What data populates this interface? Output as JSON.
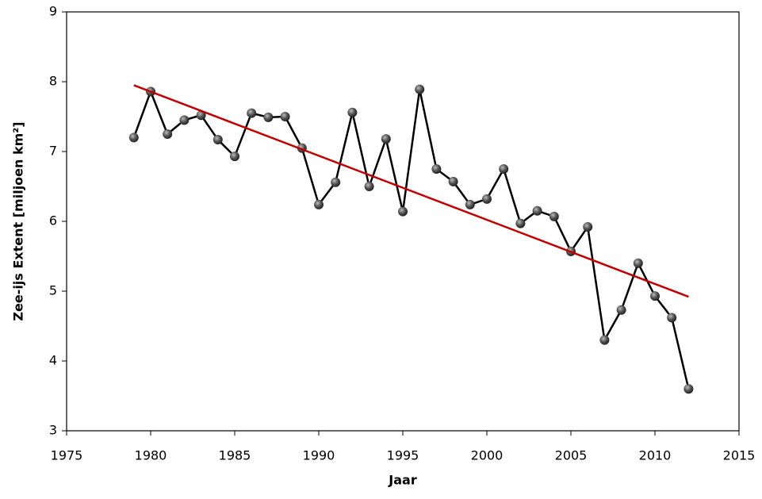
{
  "chart_data": {
    "type": "line",
    "xlabel": "Jaar",
    "ylabel": "Zee-ijs Extent [miljoen km²]",
    "x": [
      1979,
      1980,
      1981,
      1982,
      1983,
      1984,
      1985,
      1986,
      1987,
      1988,
      1989,
      1990,
      1991,
      1992,
      1993,
      1994,
      1995,
      1996,
      1997,
      1998,
      1999,
      2000,
      2001,
      2002,
      2003,
      2004,
      2005,
      2006,
      2007,
      2008,
      2009,
      2010,
      2011,
      2012
    ],
    "series": [
      {
        "color": "#000000",
        "marker": true,
        "values": [
          7.2,
          7.86,
          7.25,
          7.45,
          7.52,
          7.17,
          6.93,
          7.55,
          7.49,
          7.5,
          7.05,
          6.24,
          6.56,
          7.56,
          6.5,
          7.18,
          6.14,
          7.89,
          6.75,
          6.57,
          6.24,
          6.32,
          6.75,
          5.97,
          6.15,
          6.07,
          5.57,
          5.92,
          4.3,
          4.73,
          5.4,
          4.93,
          4.62,
          3.6
        ]
      },
      {
        "color": "#c00000",
        "marker": false,
        "x": [
          1979,
          2012
        ],
        "values": [
          7.95,
          4.92
        ]
      }
    ],
    "xlim": [
      1975,
      2015
    ],
    "xticks": [
      1975,
      1980,
      1985,
      1990,
      1995,
      2000,
      2005,
      2010,
      2015
    ],
    "ylim": [
      3,
      9
    ],
    "yticks": [
      3,
      4,
      5,
      6,
      7,
      8,
      9
    ],
    "grid": false
  }
}
